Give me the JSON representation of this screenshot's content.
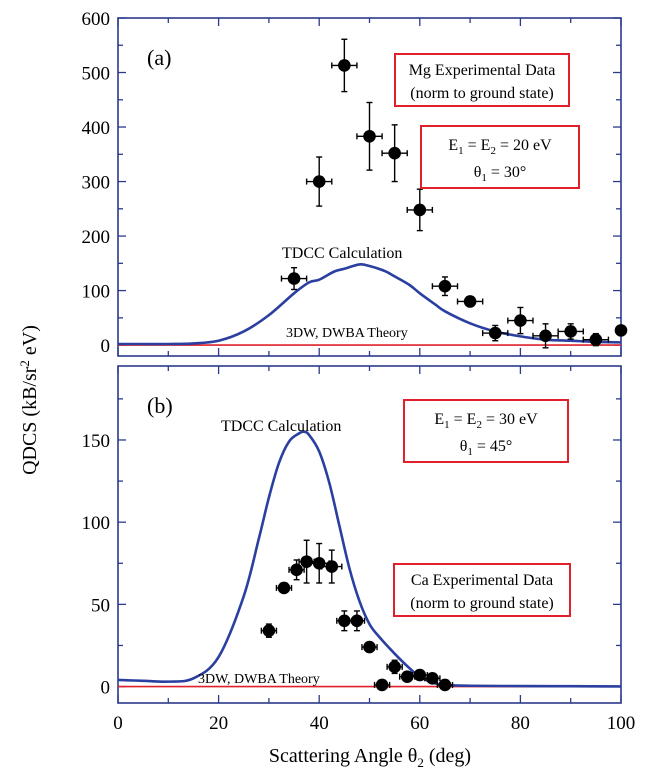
{
  "y_axis_title": "QDCS (kB/sr² eV)",
  "x_axis_title": "Scattering Angle θ₂ (deg)",
  "x_ticks": [
    "0",
    "20",
    "40",
    "60",
    "80",
    "100"
  ],
  "colors": {
    "frame": "#2b3a8c",
    "tdcc": "#2a3fa0",
    "dw": "#e0202a",
    "box": "#e0202a",
    "points": "#000000"
  },
  "panel_a": {
    "tag": "(a)",
    "y_ticks": [
      "0",
      "100",
      "200",
      "300",
      "400",
      "500",
      "600"
    ],
    "tdcc_label": "TDCC Calculation",
    "dw_label": "3DW, DWBA Theory",
    "box1_line1": "Mg Experimental Data",
    "box1_line2": "(norm to ground state)",
    "box2_line1": "E₁ = E₂ = 20 eV",
    "box2_line2": "θ₁ = 30°"
  },
  "panel_b": {
    "tag": "(b)",
    "y_ticks": [
      "0",
      "50",
      "100",
      "150"
    ],
    "tdcc_label": "TDCC Calculation",
    "dw_label": "3DW, DWBA Theory",
    "box1_line1": "E₁ = E₂ = 30 eV",
    "box1_line2": "θ₁ = 45°",
    "box2_line1": "Ca Experimental Data",
    "box2_line2": "(norm to ground state)"
  },
  "chart_data": [
    {
      "type": "scatter",
      "panel": "(a)",
      "xlim": [
        0,
        100
      ],
      "ylim": [
        -20,
        600
      ],
      "series": [
        {
          "name": "Mg Experimental Data",
          "x": [
            35,
            40,
            45,
            50,
            55,
            60,
            65,
            70,
            75,
            80,
            85,
            90,
            95,
            100
          ],
          "y": [
            122,
            300,
            513,
            383,
            352,
            248,
            108,
            80,
            22,
            45,
            17,
            25,
            10,
            27
          ],
          "xerr": [
            2.5,
            2.5,
            2.5,
            2.5,
            2.5,
            2.5,
            2.5,
            2.5,
            2.5,
            2.5,
            2.5,
            2.5,
            2.5,
            0
          ],
          "yerr": [
            20,
            45,
            48,
            62,
            52,
            38,
            17,
            6,
            14,
            24,
            22,
            14,
            11,
            0
          ]
        },
        {
          "name": "TDCC Calculation",
          "x": [
            0,
            5,
            10,
            15,
            20,
            25,
            30,
            35,
            38,
            40,
            43,
            45,
            48,
            50,
            53,
            55,
            58,
            60,
            63,
            65,
            70,
            75,
            80,
            85,
            90,
            95,
            100
          ],
          "y": [
            2,
            2,
            2,
            3,
            8,
            25,
            55,
            95,
            115,
            120,
            135,
            140,
            148,
            145,
            136,
            126,
            110,
            95,
            75,
            62,
            40,
            25,
            16,
            10,
            8,
            6,
            5
          ]
        },
        {
          "name": "3DW, DWBA Theory",
          "x": [
            0,
            100
          ],
          "y": [
            0,
            0
          ]
        }
      ]
    },
    {
      "type": "scatter",
      "panel": "(b)",
      "xlim": [
        0,
        100
      ],
      "ylim": [
        -10,
        195
      ],
      "series": [
        {
          "name": "Ca Experimental Data",
          "x": [
            30,
            33,
            35.5,
            37.5,
            40,
            42.5,
            45,
            47.5,
            50,
            52.5,
            55,
            57.5,
            60,
            62.5,
            65
          ],
          "y": [
            34,
            60,
            71,
            76,
            75,
            73,
            40,
            40,
            24,
            1,
            12,
            6,
            7,
            5,
            1
          ],
          "xerr": [
            1.5,
            1.5,
            1.5,
            1.5,
            2,
            2,
            1.5,
            1.5,
            1.5,
            1.5,
            1.5,
            1.5,
            1.5,
            1.5,
            1.5
          ],
          "yerr": [
            4,
            3,
            6,
            13,
            12,
            10,
            6,
            6,
            3,
            0,
            4,
            3,
            3,
            3,
            3
          ]
        },
        {
          "name": "TDCC Calculation",
          "x": [
            0,
            5,
            10,
            15,
            20,
            25,
            28,
            30,
            32,
            34,
            36,
            37,
            38,
            40,
            42,
            44,
            46,
            48,
            50,
            52,
            55,
            58,
            60,
            63,
            65,
            70,
            80,
            90,
            100
          ],
          "y": [
            4,
            3.5,
            3,
            5,
            18,
            55,
            90,
            115,
            136,
            149,
            154,
            155,
            153,
            143,
            124,
            98,
            72,
            52,
            38,
            30,
            20,
            11,
            6,
            2,
            1,
            0.5,
            0.3,
            0.2,
            0.1
          ]
        },
        {
          "name": "3DW, DWBA Theory",
          "x": [
            0,
            100
          ],
          "y": [
            0,
            0
          ]
        }
      ]
    }
  ]
}
